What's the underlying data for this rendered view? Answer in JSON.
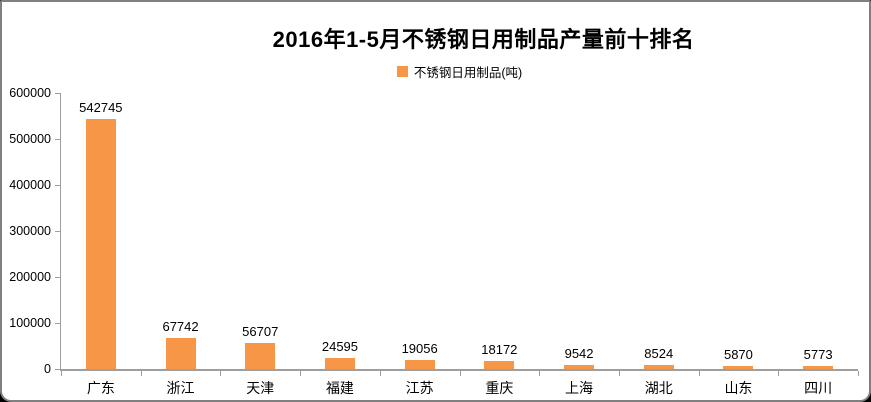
{
  "chart_data": {
    "type": "bar",
    "title": "2016年1-5月不锈钢日用制品产量前十排名",
    "legend": "不锈钢日用制品(吨)",
    "legend_position": "top-center",
    "categories": [
      "广东",
      "浙江",
      "天津",
      "福建",
      "江苏",
      "重庆",
      "上海",
      "湖北",
      "山东",
      "四川"
    ],
    "values": [
      542745,
      67742,
      56707,
      24595,
      19056,
      18172,
      9542,
      8524,
      5870,
      5773
    ],
    "unit": "吨",
    "xlabel": "",
    "ylabel": "",
    "ylim": [
      0,
      600000
    ],
    "ytick_interval": 100000,
    "yticks": [
      600000,
      500000,
      400000,
      300000,
      200000,
      100000,
      0
    ],
    "grid": false,
    "data_labels": true,
    "bar_color": "#F79646"
  },
  "colors": {
    "bar": "#F79646",
    "axis": "#9E9E9E",
    "text": "#000000",
    "frame_border": "#808080",
    "background": "#FFFFFF"
  }
}
